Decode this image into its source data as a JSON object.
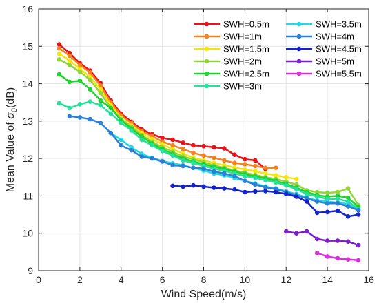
{
  "chart_data": {
    "type": "line",
    "title": "",
    "xlabel": "Wind Speed(m/s)",
    "ylabel": "Mean Value of σ0(dB)",
    "xlim": [
      0,
      16
    ],
    "ylim": [
      9,
      16
    ],
    "xticks": [
      "0",
      "2",
      "4",
      "6",
      "8",
      "10",
      "12",
      "14",
      "16"
    ],
    "yticks": [
      "9",
      "10",
      "11",
      "12",
      "13",
      "14",
      "15",
      "16"
    ],
    "grid": true,
    "legend_position": "top-right",
    "marker": "circle",
    "series": [
      {
        "name": "SWH=0.5m",
        "color": "#e8141c",
        "x": [
          1,
          1.5,
          2,
          2.5,
          3,
          3.5,
          4,
          4.5,
          5,
          5.5,
          6,
          6.5,
          7,
          7.5,
          8,
          8.5,
          9,
          9.5,
          10,
          10.5,
          11
        ],
        "y": [
          15.05,
          14.82,
          14.55,
          14.35,
          14.02,
          13.55,
          13.2,
          12.98,
          12.78,
          12.65,
          12.55,
          12.5,
          12.42,
          12.35,
          12.33,
          12.3,
          12.27,
          12.1,
          11.98,
          11.95,
          11.72
        ]
      },
      {
        "name": "SWH=1m",
        "color": "#f58220",
        "x": [
          1,
          1.5,
          2,
          2.5,
          3,
          3.5,
          4,
          4.5,
          5,
          5.5,
          6,
          6.5,
          7,
          7.5,
          8,
          8.5,
          9,
          9.5,
          10,
          10.5,
          11,
          11.5
        ],
        "y": [
          14.95,
          14.75,
          14.5,
          14.3,
          13.95,
          13.5,
          13.15,
          12.95,
          12.73,
          12.6,
          12.45,
          12.35,
          12.25,
          12.15,
          12.08,
          12.02,
          11.95,
          11.88,
          11.85,
          11.8,
          11.75,
          11.75
        ]
      },
      {
        "name": "SWH=1.5m",
        "color": "#f2e510",
        "x": [
          1,
          1.5,
          2,
          2.5,
          3,
          3.5,
          4,
          4.5,
          5,
          5.5,
          6,
          6.5,
          7,
          7.5,
          8,
          8.5,
          9,
          9.5,
          10,
          10.5,
          11,
          11.5,
          12,
          12.5
        ],
        "y": [
          14.8,
          14.62,
          14.4,
          14.18,
          13.85,
          13.42,
          13.08,
          12.88,
          12.68,
          12.52,
          12.38,
          12.25,
          12.13,
          12.02,
          11.95,
          11.88,
          11.82,
          11.76,
          11.7,
          11.66,
          11.6,
          11.55,
          11.5,
          11.45
        ]
      },
      {
        "name": "SWH=2m",
        "color": "#92d53a",
        "x": [
          1,
          1.5,
          2,
          2.5,
          3,
          3.5,
          4,
          4.5,
          5,
          5.5,
          6,
          6.5,
          7,
          7.5,
          8,
          8.5,
          9,
          9.5,
          10,
          10.5,
          11,
          11.5,
          12,
          12.5,
          13,
          13.5,
          14,
          14.5,
          15,
          15.5
        ],
        "y": [
          14.65,
          14.5,
          14.32,
          14.1,
          13.75,
          13.35,
          13.05,
          12.85,
          12.62,
          12.45,
          12.3,
          12.18,
          12.05,
          11.98,
          11.9,
          11.82,
          11.75,
          11.68,
          11.62,
          11.56,
          11.5,
          11.45,
          11.38,
          11.3,
          11.15,
          11.1,
          11.08,
          11.1,
          11.2,
          10.75
        ]
      },
      {
        "name": "SWH=2.5m",
        "color": "#1fd22d",
        "x": [
          1,
          1.5,
          2,
          2.5,
          3,
          3.5,
          4,
          4.5,
          5,
          5.5,
          6,
          6.5,
          7,
          7.5,
          8,
          8.5,
          9,
          9.5,
          10,
          10.5,
          11,
          11.5,
          12,
          12.5,
          13,
          13.5,
          14,
          14.5,
          15,
          15.5
        ],
        "y": [
          14.25,
          14.05,
          14.08,
          13.85,
          13.55,
          13.35,
          13.02,
          12.8,
          12.58,
          12.4,
          12.25,
          12.12,
          12.0,
          11.92,
          11.85,
          11.78,
          11.72,
          11.65,
          11.58,
          11.52,
          11.47,
          11.4,
          11.32,
          11.22,
          11.1,
          11.02,
          10.98,
          11.0,
          10.95,
          10.7
        ]
      },
      {
        "name": "SWH=3m",
        "color": "#27e09c",
        "x": [
          1,
          1.5,
          2,
          2.5,
          3,
          3.5,
          4,
          4.5,
          5,
          5.5,
          6,
          6.5,
          7,
          7.5,
          8,
          8.5,
          9,
          9.5,
          10,
          10.5,
          11,
          11.5,
          12,
          12.5,
          13,
          13.5,
          14,
          14.5,
          15,
          15.5
        ],
        "y": [
          13.48,
          13.35,
          13.45,
          13.52,
          13.42,
          13.2,
          12.95,
          12.75,
          12.5,
          12.35,
          12.2,
          12.08,
          11.95,
          11.88,
          11.8,
          11.73,
          11.67,
          11.6,
          11.53,
          11.48,
          11.42,
          11.36,
          11.28,
          11.18,
          11.05,
          10.98,
          10.92,
          10.92,
          10.85,
          10.65
        ]
      },
      {
        "name": "SWH=3.5m",
        "color": "#1fd8e3",
        "x": [
          3.5,
          4,
          4.5,
          5,
          5.5,
          6,
          6.5,
          7,
          7.5,
          8,
          8.5,
          9,
          9.5,
          10,
          10.5,
          11,
          11.5,
          12,
          12.5,
          13,
          13.5,
          14,
          14.5,
          15,
          15.5
        ],
        "y": [
          12.68,
          12.5,
          12.3,
          12.12,
          12.02,
          11.93,
          11.87,
          11.82,
          11.75,
          11.68,
          11.6,
          11.55,
          11.48,
          11.4,
          11.33,
          11.25,
          11.2,
          11.12,
          11.05,
          10.95,
          10.88,
          10.85,
          10.82,
          10.78,
          10.62
        ]
      },
      {
        "name": "SWH=4m",
        "color": "#2b7fd6",
        "x": [
          1.5,
          2,
          2.5,
          3,
          3.5,
          4,
          4.5,
          5,
          5.5,
          6,
          6.5,
          7,
          7.5,
          8,
          8.5,
          9,
          9.5,
          10,
          10.5,
          11,
          11.5,
          12,
          12.5,
          13,
          13.5,
          14,
          14.5,
          15,
          15.5
        ],
        "y": [
          13.13,
          13.1,
          13.05,
          12.95,
          12.68,
          12.35,
          12.22,
          12.05,
          12.0,
          11.92,
          11.82,
          11.8,
          11.75,
          11.73,
          11.65,
          11.6,
          11.53,
          11.4,
          11.3,
          11.23,
          11.18,
          11.1,
          11.02,
          10.93,
          10.85,
          10.8,
          10.8,
          10.72,
          10.62
        ]
      },
      {
        "name": "SWH=4.5m",
        "color": "#1424cc",
        "x": [
          6.5,
          7,
          7.5,
          8,
          8.5,
          9,
          9.5,
          10,
          10.5,
          11,
          11.5,
          12,
          12.5,
          13,
          13.5,
          14,
          14.5,
          15,
          15.5
        ],
        "y": [
          11.27,
          11.25,
          11.28,
          11.25,
          11.22,
          11.2,
          11.17,
          11.1,
          11.12,
          11.13,
          11.1,
          11.05,
          10.98,
          10.85,
          10.55,
          10.57,
          10.6,
          10.45,
          10.5
        ]
      },
      {
        "name": "SWH=5m",
        "color": "#7a1fc9",
        "x": [
          12,
          12.5,
          13,
          13.5,
          14,
          14.5,
          15,
          15.5
        ],
        "y": [
          10.05,
          10.0,
          10.05,
          9.85,
          9.8,
          9.8,
          9.78,
          9.68
        ]
      },
      {
        "name": "SWH=5.5m",
        "color": "#d630d6",
        "x": [
          13.5,
          14,
          14.5,
          15,
          15.5
        ],
        "y": [
          9.47,
          9.38,
          9.33,
          9.3,
          9.28
        ]
      }
    ]
  }
}
